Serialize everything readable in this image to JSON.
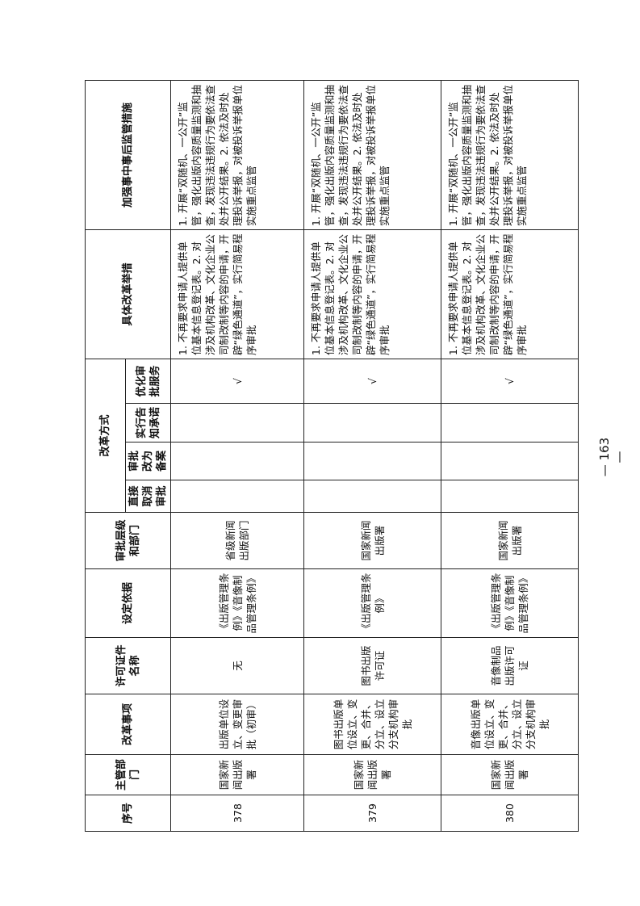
{
  "headers": {
    "seq": "序号",
    "dept": "主管部门",
    "item": "改革事项",
    "license": "许可证件名称",
    "basis": "设定依据",
    "level": "审批层级和部门",
    "method": "改革方式",
    "m1": "直接取消审批",
    "m2": "审批改为备案",
    "m3": "实行告知承诺",
    "m4": "优化审批服务",
    "measures": "具体改革举措",
    "supervision": "加强事中事后监管措施"
  },
  "rows": [
    {
      "seq": "378",
      "dept": "国家新闻出版署",
      "item": "出版单位设立、变更审批（初审）",
      "license": "无",
      "basis": "《出版管理条例》《音像制品管理条例》",
      "level": "省级新闻出版部门",
      "m1": "",
      "m2": "",
      "m3": "",
      "m4": "√",
      "measures": "1. 不再要求申请人提供单位基本信息登记表。2. 对涉及机构改革、文化企业公司制改制等内容的申请，开辟“绿色通道”，实行简易程序审批",
      "supervision": "1. 开展“双随机、一公开”监管，强化出版内容质量监测和抽查，发现违法违规行为要依法查处并公开结果。2. 依法及时处理投诉举报，对被投诉举报单位实施重点监管"
    },
    {
      "seq": "379",
      "dept": "国家新闻出版署",
      "item": "图书出版单位设立、变更、合并、分立、设立分支机构审批",
      "license": "图书出版许可证",
      "basis": "《出版管理条例》",
      "level": "国家新闻出版署",
      "m1": "",
      "m2": "",
      "m3": "",
      "m4": "√",
      "measures": "1. 不再要求申请人提供单位基本信息登记表。2. 对涉及机构改革、文化企业公司制改制等内容的申请，开辟“绿色通道”，实行简易程序审批",
      "supervision": "1. 开展“双随机、一公开”监管，强化出版内容质量监测和抽查，发现违法违规行为要依法查处并公开结果。2. 依法及时处理投诉举报，对被投诉举报单位实施重点监管"
    },
    {
      "seq": "380",
      "dept": "国家新闻出版署",
      "item": "音像出版单位设立、变更、合并、分立、设立分支机构审批",
      "license": "音像制品出版许可证",
      "basis": "《出版管理条例》《音像制品管理条例》",
      "level": "国家新闻出版署",
      "m1": "",
      "m2": "",
      "m3": "",
      "m4": "√",
      "measures": "1. 不再要求申请人提供单位基本信息登记表。2. 对涉及机构改革、文化企业公司制改制等内容的申请，开辟“绿色通道”，实行简易程序审批",
      "supervision": "1. 开展“双随机、一公开”监管，强化出版内容质量监测和抽查，发现违法违规行为要依法查处并公开结果。2. 依法及时处理投诉举报，对被投诉举报单位实施重点监管"
    }
  ],
  "page_number": "— 163 —"
}
